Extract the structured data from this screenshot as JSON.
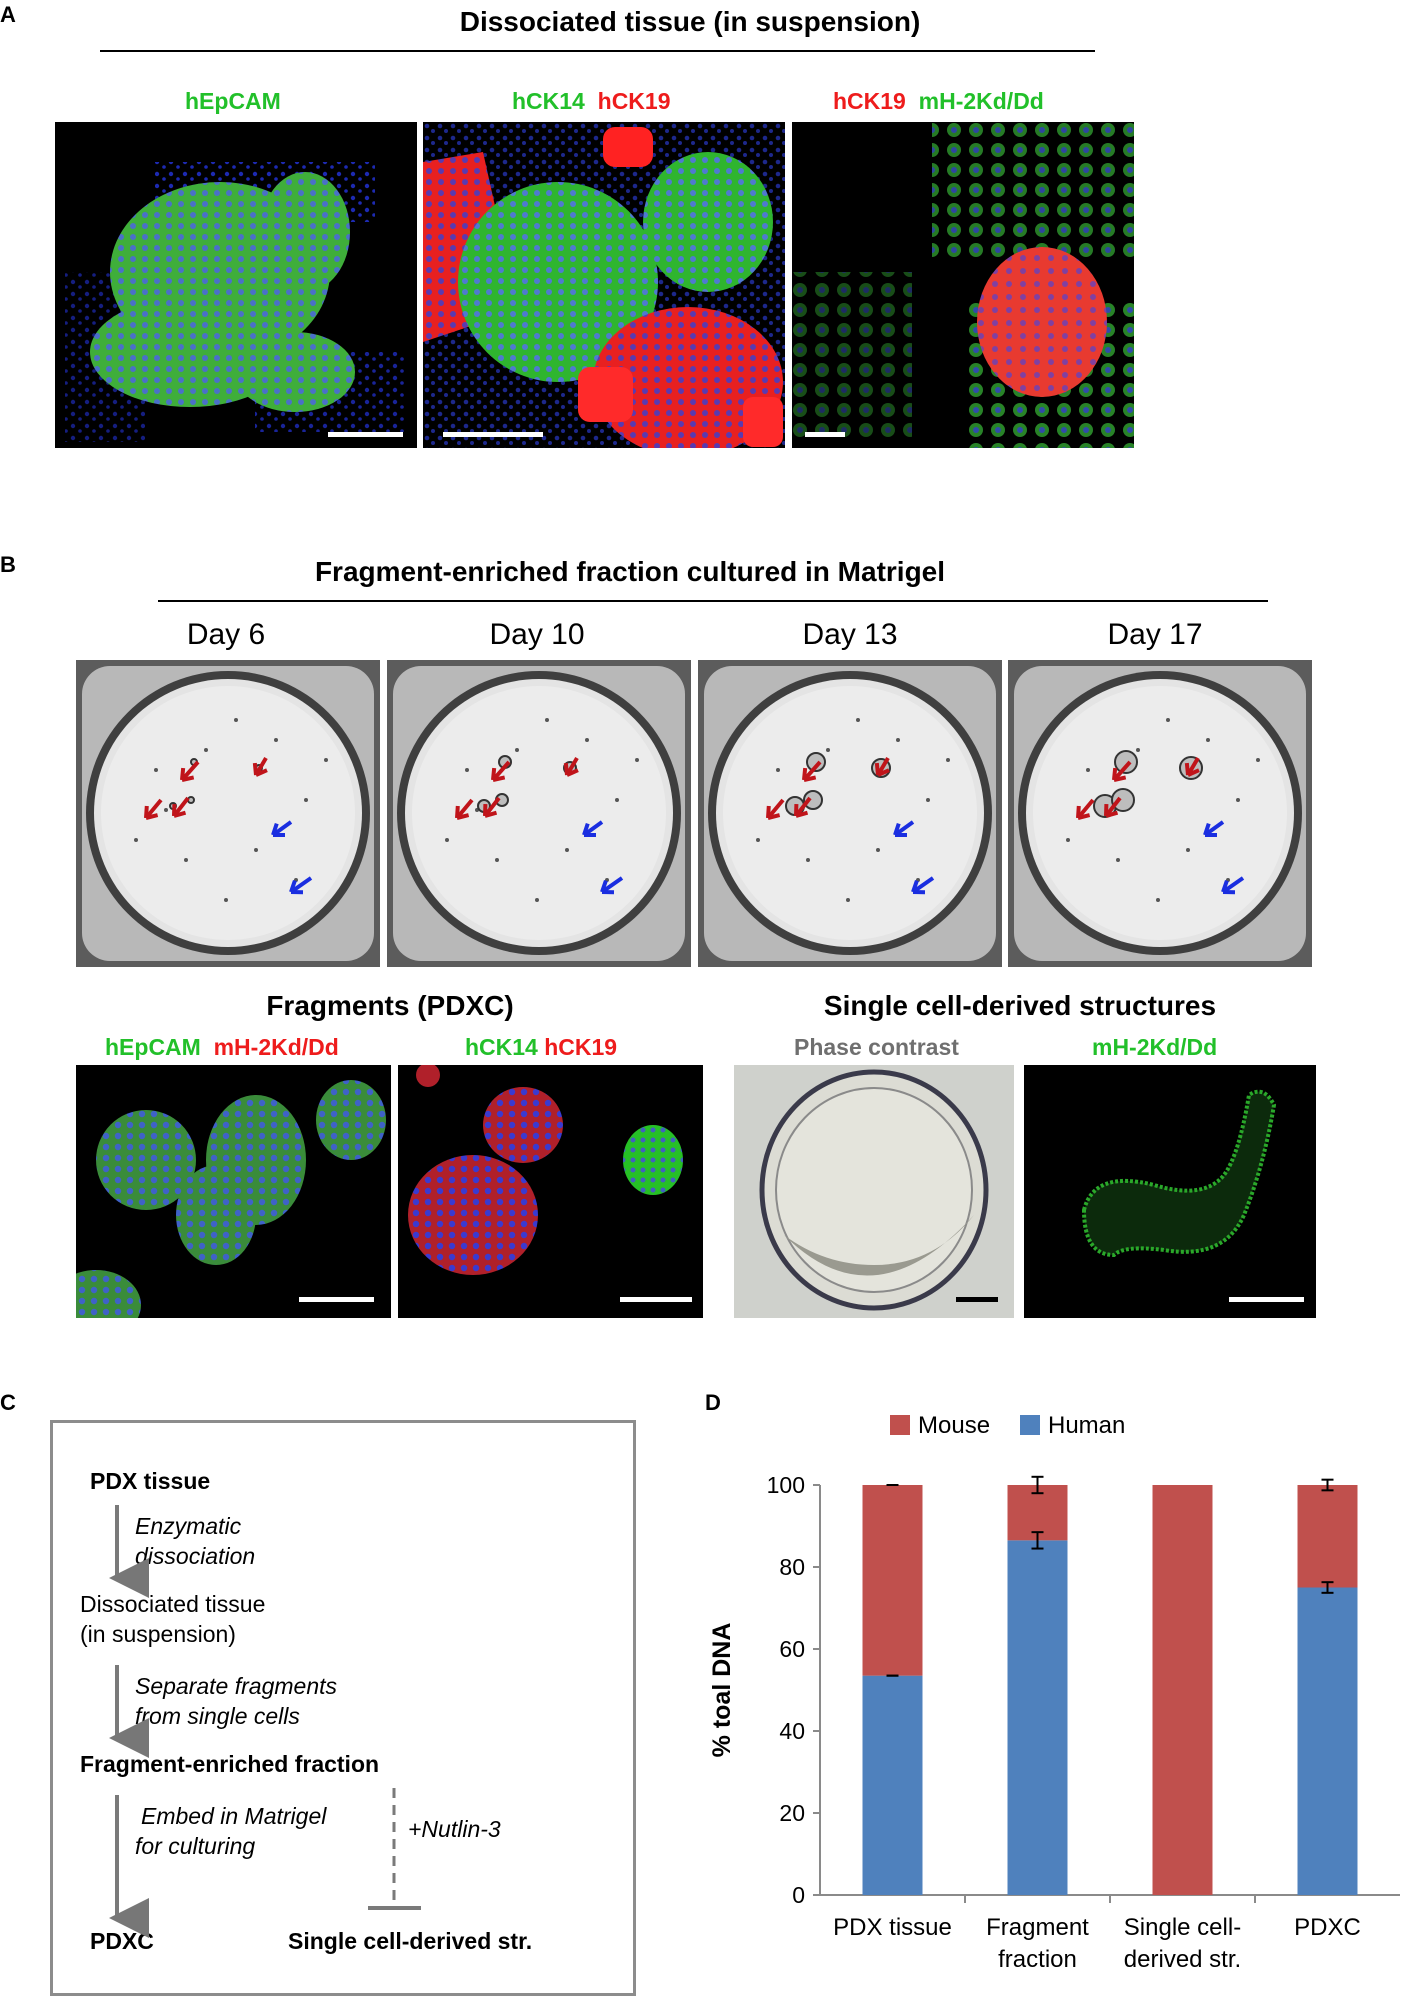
{
  "panel_a": {
    "letter": "A",
    "title": "Dissociated tissue (in suspension)",
    "images": [
      {
        "labels": [
          {
            "text": "hEpCAM",
            "color": "green"
          }
        ]
      },
      {
        "labels": [
          {
            "text": "hCK14",
            "color": "green"
          },
          {
            "text": "hCK19",
            "color": "red"
          }
        ]
      },
      {
        "labels": [
          {
            "text": "hCK19",
            "color": "red"
          },
          {
            "text": "mH-2Kd/Dd",
            "color": "green"
          }
        ]
      }
    ]
  },
  "panel_b": {
    "letter": "B",
    "title": "Fragment-enriched fraction cultured in Matrigel",
    "days": [
      "Day 6",
      "Day 10",
      "Day 13",
      "Day 17"
    ],
    "fragments_title": "Fragments (PDXC)",
    "fragments_labels": [
      [
        {
          "text": "hEpCAM",
          "color": "green"
        },
        {
          "text": "mH-2Kd/Dd",
          "color": "red"
        }
      ],
      [
        {
          "text": "hCK14",
          "color": "green"
        },
        {
          "text": "hCK19",
          "color": "red"
        }
      ]
    ],
    "single_title": "Single cell-derived structures",
    "single_labels": [
      {
        "text": "Phase contrast",
        "color": "gray"
      },
      {
        "text": "mH-2Kd/Dd",
        "color": "green"
      }
    ],
    "arrow_colors": {
      "red": "#c0141a",
      "blue": "#1a2ee0"
    }
  },
  "panel_c": {
    "letter": "C",
    "steps": {
      "pdx_tissue": "PDX tissue",
      "enzymatic_1": "Enzymatic",
      "enzymatic_2": "dissociation",
      "dissociated_1": "Dissociated tissue",
      "dissociated_2": "(in suspension)",
      "separate_1": "Separate fragments",
      "separate_2": "from single cells",
      "fragment_fraction": "Fragment-enriched fraction",
      "embed_1": "Embed in Matrigel",
      "embed_2": "for culturing",
      "nutlin": "+Nutlin-3",
      "pdxc": "PDXC",
      "single": "Single cell-derived str."
    }
  },
  "panel_d": {
    "letter": "D",
    "chart_data": {
      "type": "bar",
      "stacked": true,
      "categories": [
        [
          "PDX tissue"
        ],
        [
          "Fragment",
          "fraction"
        ],
        [
          "Single cell-",
          "derived str."
        ],
        [
          "PDXC"
        ]
      ],
      "series": [
        {
          "name": "Human",
          "color": "#4f81bd",
          "values": [
            53.5,
            86.5,
            0,
            75
          ],
          "error": [
            0,
            2,
            0,
            1.3
          ]
        },
        {
          "name": "Mouse",
          "color": "#c0504d",
          "values": [
            46.5,
            13.5,
            100,
            25
          ],
          "error": [
            0,
            2,
            0,
            1.3
          ]
        }
      ],
      "legend_order": [
        "Mouse",
        "Human"
      ],
      "legend_position": "top",
      "ylabel": "% toal DNA",
      "ylim": [
        0,
        100
      ],
      "yticks": [
        0,
        20,
        40,
        60,
        80,
        100
      ]
    }
  }
}
